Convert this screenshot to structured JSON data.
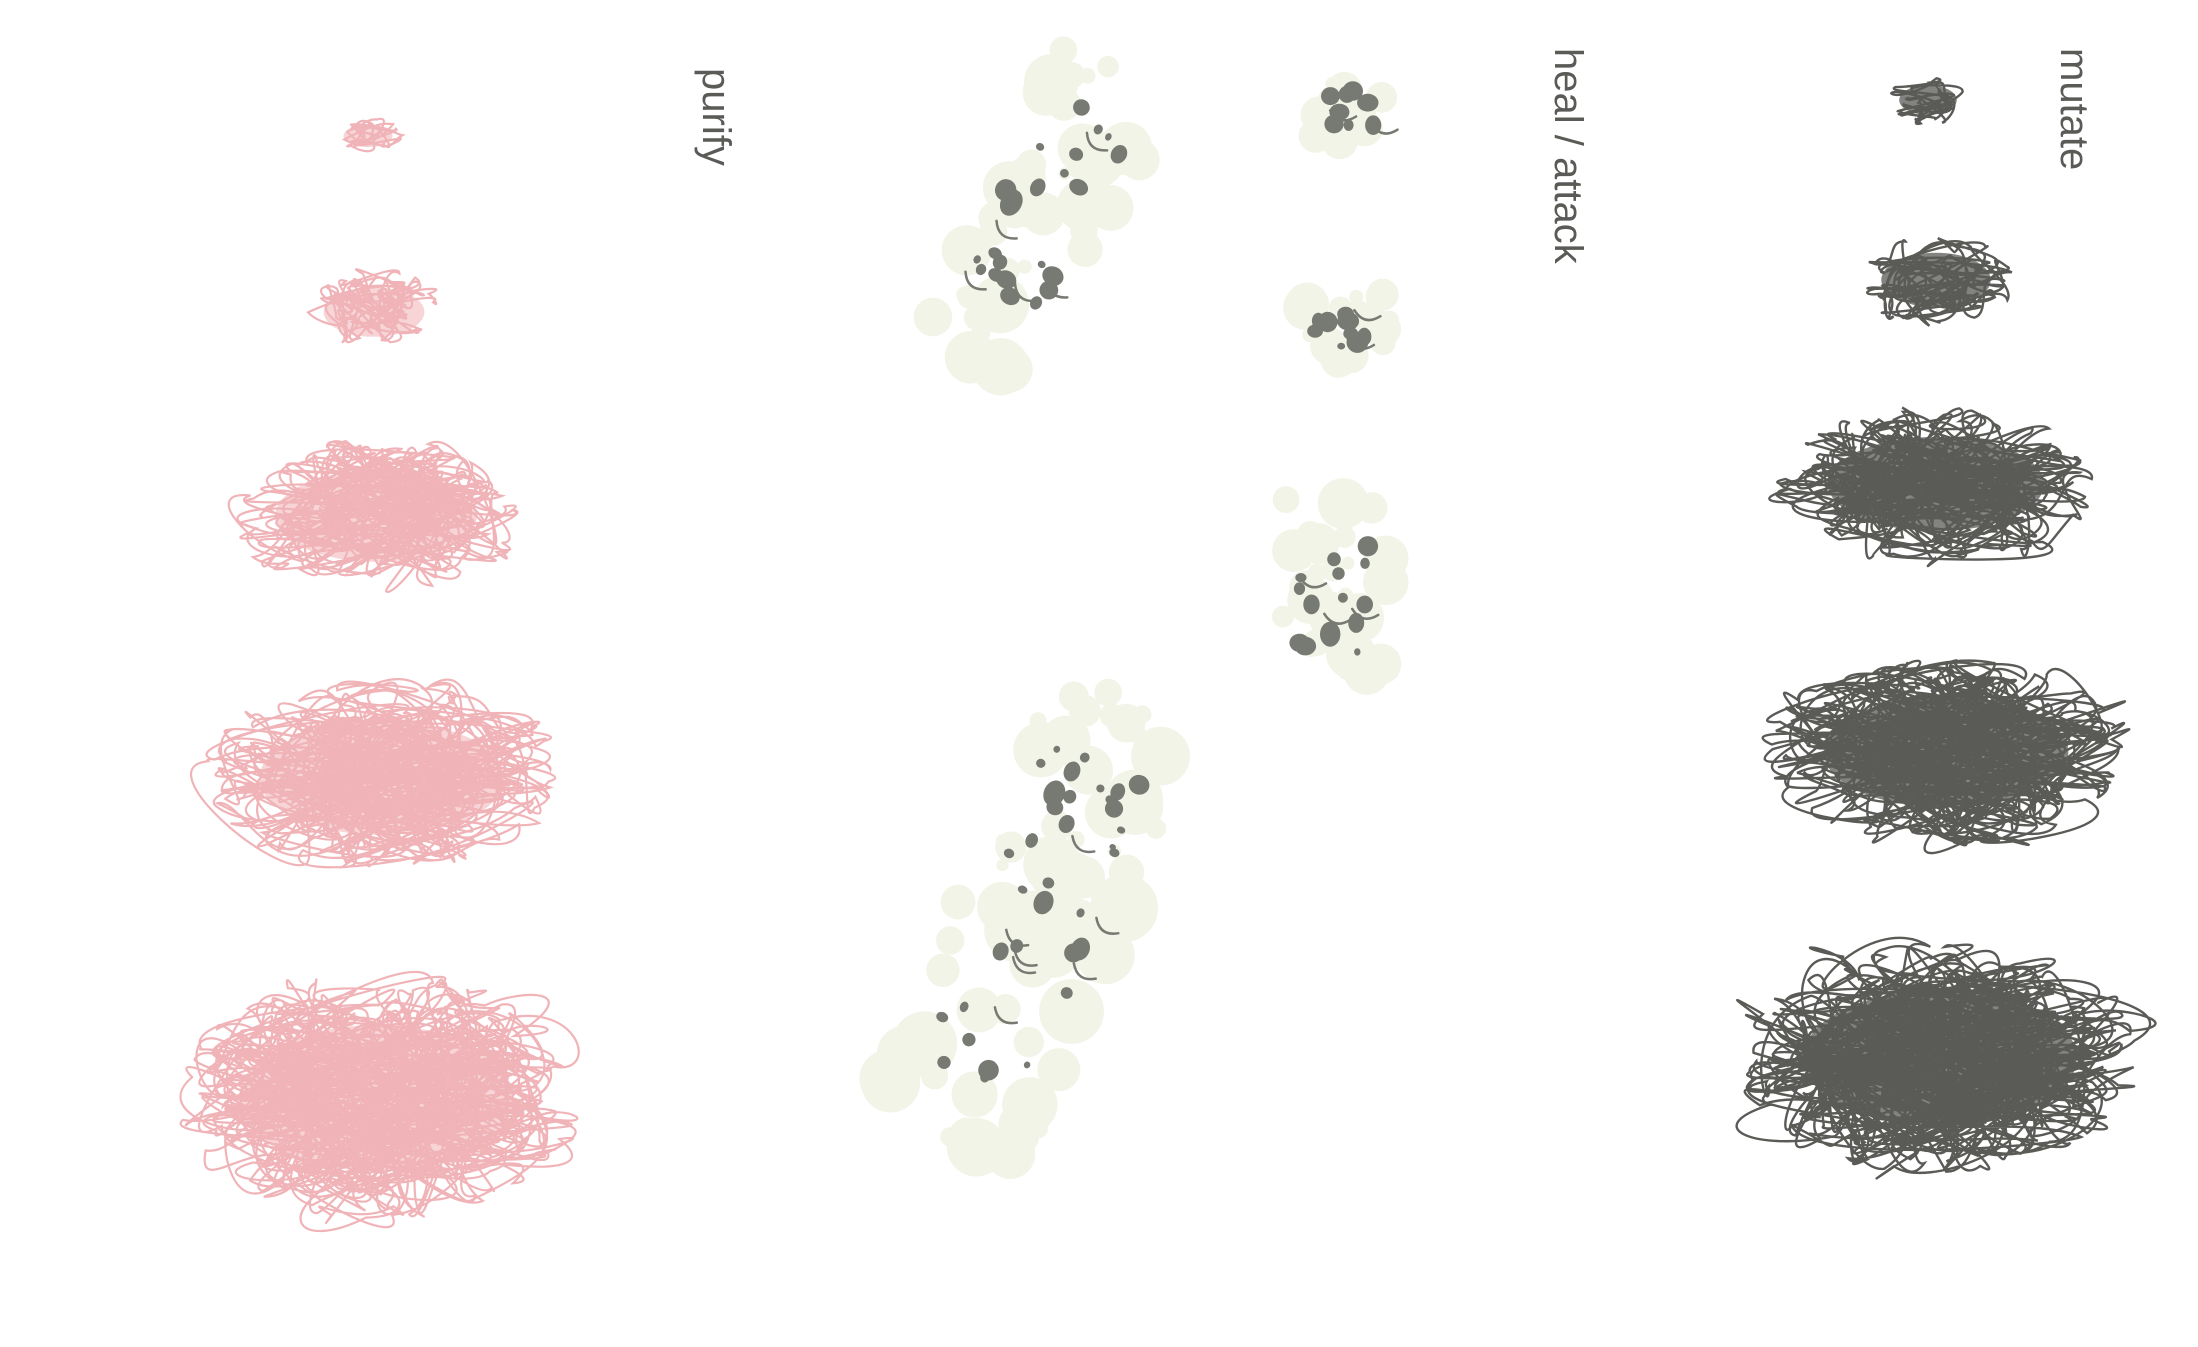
{
  "labels": {
    "purify": "purify",
    "heal_attack": "heal / attack",
    "mutate": "mutate"
  },
  "colors": {
    "purify": "#f0b3b7",
    "heal_fill": "#f1f4e6",
    "heal_dot": "#767a72",
    "mutate": "#5a5b57",
    "text": "#5a5b57",
    "background": "#ffffff"
  },
  "columns": [
    {
      "name": "purify",
      "shape_count": 5,
      "style": "scribble-tangle"
    },
    {
      "name": "heal / attack",
      "shape_count": 5,
      "style": "spotted-blob"
    },
    {
      "name": "mutate",
      "shape_count": 5,
      "style": "scribble-tangle"
    }
  ]
}
